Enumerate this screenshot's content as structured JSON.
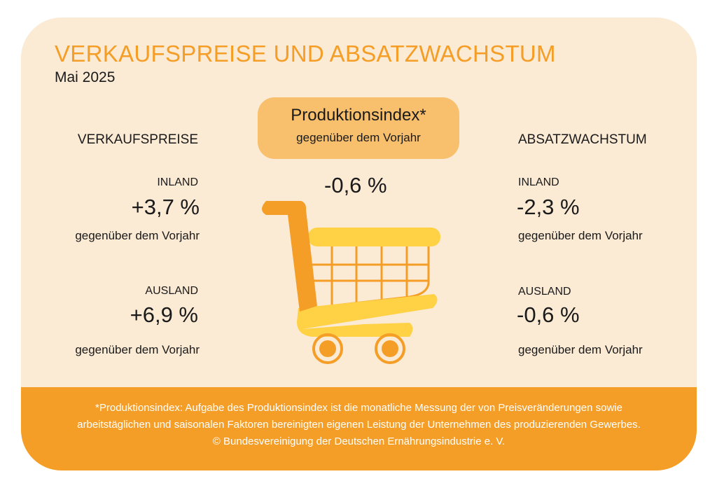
{
  "title": "VERKAUFSPREISE UND ABSATZWACHSTUM",
  "subtitle": "Mai 2025",
  "center": {
    "title": "Produktionsindex*",
    "subtitle": "gegenüber dem Vorjahr",
    "value": "-0,6 %"
  },
  "left": {
    "heading": "VERKAUFSPREISE",
    "inland": {
      "label": "INLAND",
      "value": "+3,7 %",
      "note": "gegenüber dem Vorjahr"
    },
    "ausland": {
      "label": "AUSLAND",
      "value": "+6,9 %",
      "note": "gegenüber dem Vorjahr"
    }
  },
  "right": {
    "heading": "ABSATZWACHSTUM",
    "inland": {
      "label": "INLAND",
      "value": "-2,3 %",
      "note": "gegenüber dem Vorjahr"
    },
    "ausland": {
      "label": "AUSLAND",
      "value": "-0,6 %",
      "note": "gegenüber dem Vorjahr"
    }
  },
  "footer": {
    "line1": "*Produktionsindex:  Aufgabe des Produktionsindex ist die monatliche Messung der von Preisveränderungen sowie",
    "line2": "arbeitstäglichen und saisonalen Faktoren bereinigten eigenen Leistung der Unternehmen des produzierenden Gewerbes.",
    "line3": "© Bundesvereinigung der Deutschen Ernährungsindustrie e. V."
  },
  "colors": {
    "accent": "#f59e27",
    "yellow": "#ffd145",
    "background": "#fbead4"
  }
}
